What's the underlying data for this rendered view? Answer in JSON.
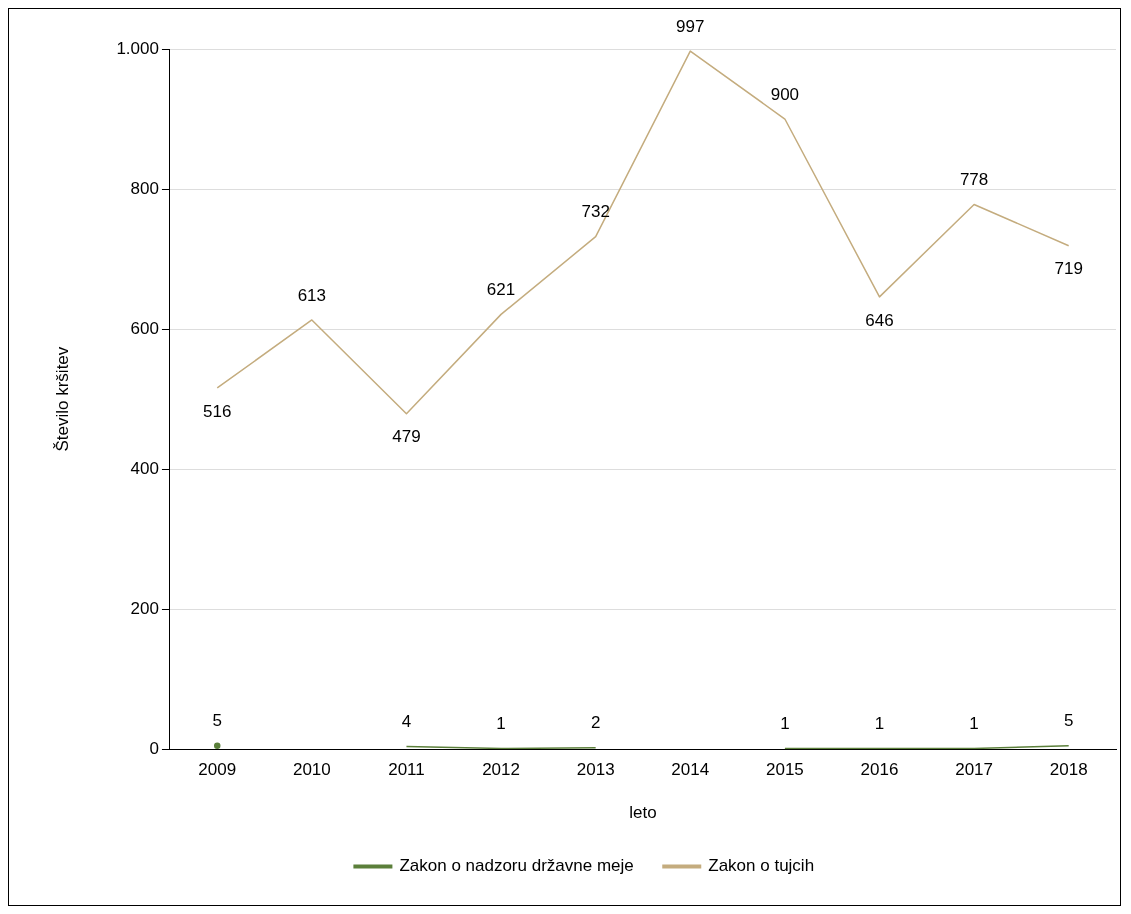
{
  "chart_data": {
    "type": "line",
    "xlabel": "leto",
    "ylabel": "Število kršitev",
    "categories": [
      "2009",
      "2010",
      "2011",
      "2012",
      "2013",
      "2014",
      "2015",
      "2016",
      "2017",
      "2018"
    ],
    "series": [
      {
        "name": "Zakon o nadzoru državne meje",
        "color": "#5b7f3a",
        "values": [
          5,
          null,
          4,
          1,
          2,
          null,
          1,
          1,
          1,
          5
        ]
      },
      {
        "name": "Zakon o tujcih",
        "color": "#c4ac7e",
        "values": [
          516,
          613,
          479,
          621,
          732,
          997,
          900,
          646,
          778,
          719
        ]
      }
    ],
    "ylim": [
      0,
      1000
    ],
    "yticks": [
      0,
      200,
      400,
      600,
      800,
      {
        "value": 1000,
        "label": "1.000"
      }
    ],
    "grid": "y",
    "legend": "bottom",
    "data_labels": true,
    "marker": "none",
    "line_style": "solid"
  }
}
